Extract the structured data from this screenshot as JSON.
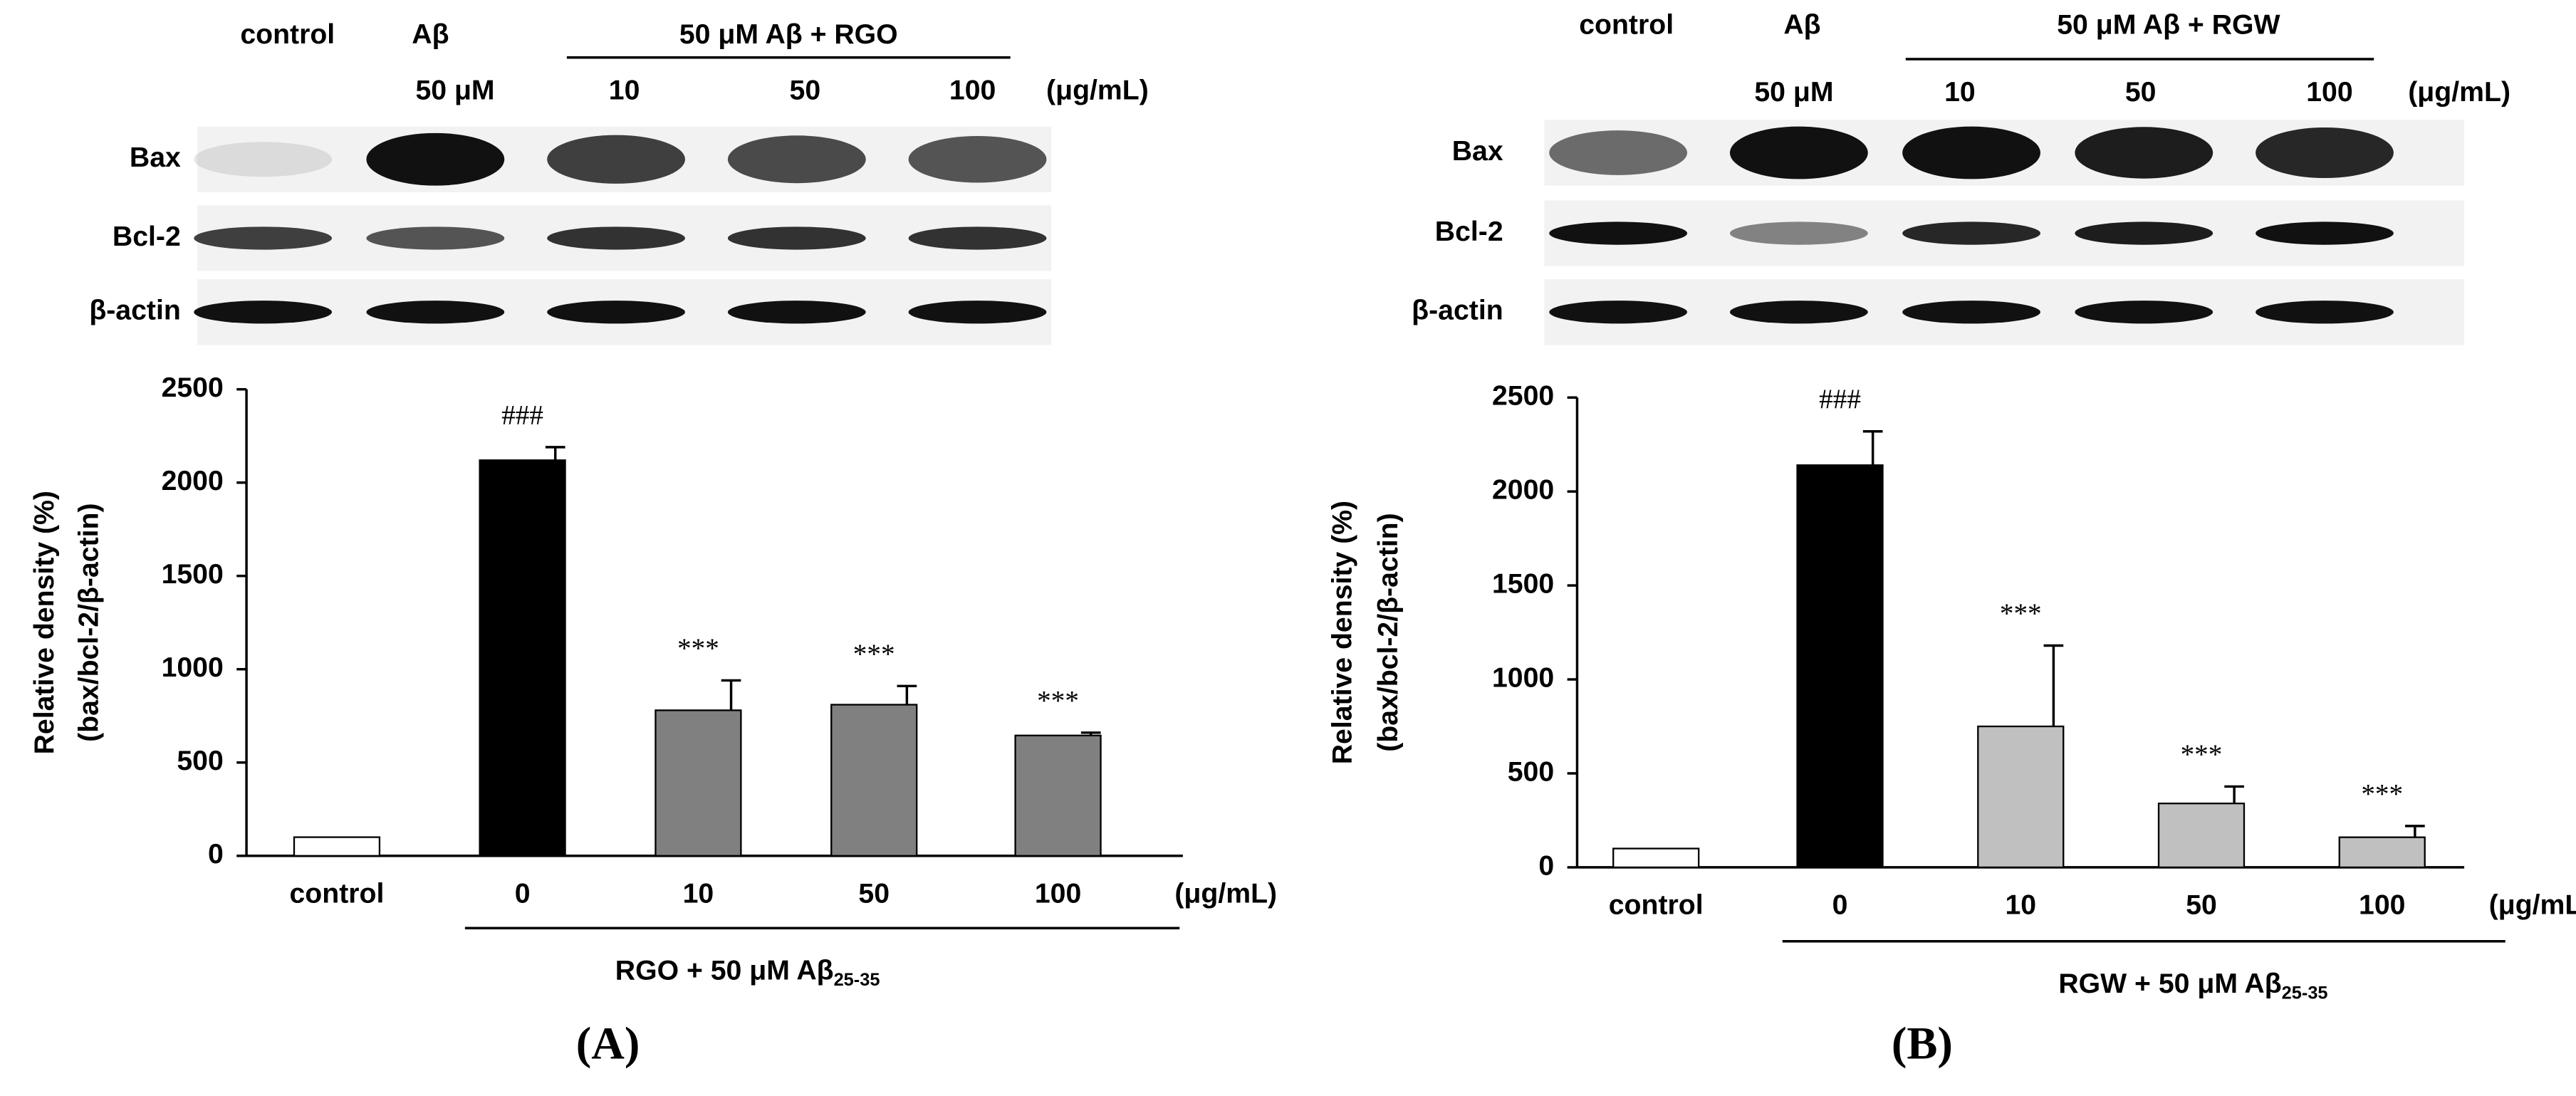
{
  "chart_data": [
    {
      "type": "bar",
      "panel_label": "(A)",
      "blot": {
        "header": [
          "control",
          "Aβ",
          "50 μM  Aβ  + RGO"
        ],
        "doses": [
          "50 μM",
          "10",
          "50",
          "100",
          "(μg/mL)"
        ],
        "rows": [
          "Bax",
          "Bcl-2",
          "β-actin"
        ]
      },
      "ylabel": [
        "Relative density (%)",
        "(bax/bcl-2/β-actin)"
      ],
      "categories": [
        "control",
        "0",
        "10",
        "50",
        "100"
      ],
      "unit": "(μg/mL)",
      "xlabel": "RGO + 50 μM Aβ",
      "xlabel_sub": "25-35",
      "values": [
        100,
        2120,
        780,
        810,
        645
      ],
      "errors": [
        0,
        70,
        160,
        100,
        15
      ],
      "annotations": [
        null,
        "###",
        "***",
        "***",
        "***"
      ],
      "colors": [
        "#ffffff",
        "#000000",
        "#808080",
        "#808080",
        "#808080"
      ],
      "ylim": [
        0,
        2500
      ],
      "yticks": [
        0,
        500,
        1000,
        1500,
        2000,
        2500
      ],
      "grid": false
    },
    {
      "type": "bar",
      "panel_label": "(B)",
      "blot": {
        "header": [
          "control",
          "Aβ",
          "50 μM  Aβ  + RGW"
        ],
        "doses": [
          "50 μM",
          "10",
          "50",
          "100",
          "(μg/mL)"
        ],
        "rows": [
          "Bax",
          "Bcl-2",
          "β-actin"
        ]
      },
      "ylabel": [
        "Relative density (%)",
        "(bax/bcl-2/β-actin)"
      ],
      "categories": [
        "control",
        "0",
        "10",
        "50",
        "100"
      ],
      "unit": "(μg/mL)",
      "xlabel": "RGW + 50 μM Aβ",
      "xlabel_sub": "25-35",
      "values": [
        100,
        2140,
        750,
        340,
        160
      ],
      "errors": [
        0,
        180,
        430,
        90,
        60
      ],
      "annotations": [
        null,
        "###",
        "***",
        "***",
        "***"
      ],
      "colors": [
        "#ffffff",
        "#000000",
        "#c0c0c0",
        "#c0c0c0",
        "#c0c0c0"
      ],
      "ylim": [
        0,
        2500
      ],
      "yticks": [
        0,
        500,
        1000,
        1500,
        2000,
        2500
      ],
      "grid": false
    }
  ]
}
